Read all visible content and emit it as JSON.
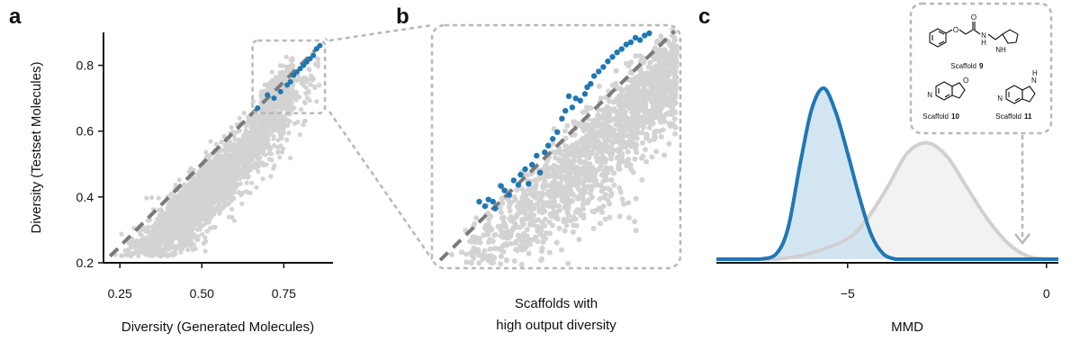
{
  "chart_data": [
    {
      "panel": "a",
      "type": "scatter",
      "xlabel": "Diversity (Generated Molecules)",
      "ylabel": "Diversity (Testset Molecules)",
      "xlim": [
        0.2,
        0.9
      ],
      "ylim": [
        0.2,
        0.9
      ],
      "x_ticks": [
        "0.25",
        "0.50",
        "0.75"
      ],
      "x_tick_values": [
        0.25,
        0.5,
        0.75
      ],
      "y_ticks": [
        "0.2",
        "0.4",
        "0.6",
        "0.8"
      ],
      "y_tick_values": [
        0.2,
        0.4,
        0.6,
        0.8
      ],
      "diagonal": [
        [
          0.22,
          0.22
        ],
        [
          0.88,
          0.88
        ]
      ],
      "zoom_box": {
        "x": [
          0.66,
          0.87
        ],
        "y": [
          0.66,
          0.87
        ]
      },
      "series": [
        {
          "color": "#d3d3d3",
          "values": "all scaffolds (~3000 points, cloud concentrated along the diagonal, x 0.23-0.86, y 0.22-0.86)"
        },
        {
          "color": "#1f77b4",
          "values": [
            [
              0.67,
              0.67
            ],
            [
              0.7,
              0.71
            ],
            [
              0.72,
              0.7
            ],
            [
              0.74,
              0.72
            ],
            [
              0.76,
              0.74
            ],
            [
              0.77,
              0.75
            ],
            [
              0.78,
              0.77
            ],
            [
              0.79,
              0.78
            ],
            [
              0.8,
              0.79
            ],
            [
              0.81,
              0.8
            ],
            [
              0.82,
              0.81
            ],
            [
              0.83,
              0.82
            ],
            [
              0.84,
              0.83
            ],
            [
              0.85,
              0.85
            ],
            [
              0.86,
              0.86
            ]
          ]
        }
      ]
    },
    {
      "panel": "b",
      "type": "scatter",
      "xlabel_lines": [
        "Scaffolds with",
        "high output diversity"
      ],
      "xlim": [
        0.66,
        0.87
      ],
      "ylim": [
        0.66,
        0.87
      ],
      "series": [
        {
          "color": "#d3d3d3",
          "values": "zoomed subset of gray points"
        },
        {
          "color": "#1f77b4",
          "values": [
            [
              0.698,
              0.716
            ],
            [
              0.703,
              0.712
            ],
            [
              0.706,
              0.718
            ],
            [
              0.71,
              0.716
            ],
            [
              0.712,
              0.71
            ],
            [
              0.717,
              0.73
            ],
            [
              0.72,
              0.726
            ],
            [
              0.724,
              0.722
            ],
            [
              0.728,
              0.735
            ],
            [
              0.732,
              0.731
            ],
            [
              0.734,
              0.74
            ],
            [
              0.738,
              0.745
            ],
            [
              0.741,
              0.732
            ],
            [
              0.744,
              0.749
            ],
            [
              0.748,
              0.757
            ],
            [
              0.751,
              0.742
            ],
            [
              0.755,
              0.76
            ],
            [
              0.758,
              0.766
            ],
            [
              0.762,
              0.772
            ],
            [
              0.766,
              0.778
            ],
            [
              0.77,
              0.79
            ],
            [
              0.773,
              0.797
            ],
            [
              0.776,
              0.81
            ],
            [
              0.779,
              0.8
            ],
            [
              0.782,
              0.808
            ],
            [
              0.786,
              0.806
            ],
            [
              0.79,
              0.812
            ],
            [
              0.792,
              0.818
            ],
            [
              0.795,
              0.821
            ],
            [
              0.798,
              0.828
            ],
            [
              0.802,
              0.832
            ],
            [
              0.806,
              0.836
            ],
            [
              0.81,
              0.841
            ],
            [
              0.814,
              0.845
            ],
            [
              0.818,
              0.849
            ],
            [
              0.822,
              0.852
            ],
            [
              0.826,
              0.856
            ],
            [
              0.83,
              0.858
            ],
            [
              0.834,
              0.862
            ],
            [
              0.838,
              0.86
            ],
            [
              0.842,
              0.864
            ],
            [
              0.846,
              0.866
            ]
          ]
        }
      ]
    },
    {
      "panel": "c",
      "type": "area",
      "xlabel": "MMD",
      "xlim": [
        -8.3,
        0.3
      ],
      "x_ticks": [
        "−5",
        "0"
      ],
      "x_tick_values": [
        -5,
        0
      ],
      "series": [
        {
          "color": "#1f77b4",
          "fill": "#cfe2f1",
          "distribution": "density peaked near −5.6",
          "values": [
            [
              -7.2,
              0.0
            ],
            [
              -6.8,
              0.03
            ],
            [
              -6.5,
              0.18
            ],
            [
              -6.2,
              0.55
            ],
            [
              -5.9,
              0.88
            ],
            [
              -5.6,
              1.0
            ],
            [
              -5.3,
              0.86
            ],
            [
              -5.0,
              0.62
            ],
            [
              -4.7,
              0.36
            ],
            [
              -4.4,
              0.14
            ],
            [
              -4.1,
              0.03
            ],
            [
              -3.8,
              0.0
            ]
          ]
        },
        {
          "color": "#d0d0d0",
          "fill": "#f2f2f2",
          "distribution": "density peaked near −3.0",
          "values": [
            [
              -6.8,
              0.0
            ],
            [
              -6.0,
              0.03
            ],
            [
              -5.0,
              0.12
            ],
            [
              -4.5,
              0.24
            ],
            [
              -4.0,
              0.42
            ],
            [
              -3.5,
              0.62
            ],
            [
              -3.0,
              0.68
            ],
            [
              -2.5,
              0.6
            ],
            [
              -2.0,
              0.42
            ],
            [
              -1.5,
              0.24
            ],
            [
              -1.0,
              0.1
            ],
            [
              -0.5,
              0.02
            ],
            [
              0.0,
              0.0
            ]
          ]
        }
      ],
      "annotation": {
        "points_to": -0.7,
        "scaffolds": [
          {
            "label": "Scaffold",
            "number": "9"
          },
          {
            "label": "Scaffold",
            "number": "10"
          },
          {
            "label": "Scaffold",
            "number": "11"
          }
        ],
        "atoms": {
          "n_ring": "N",
          "nh": "NH",
          "h": "H",
          "n": "N",
          "o": "O",
          "o2": "O",
          "h2": "H",
          "n2": "N"
        }
      }
    }
  ],
  "panels": {
    "a": "a",
    "b": "b",
    "c": "c"
  }
}
